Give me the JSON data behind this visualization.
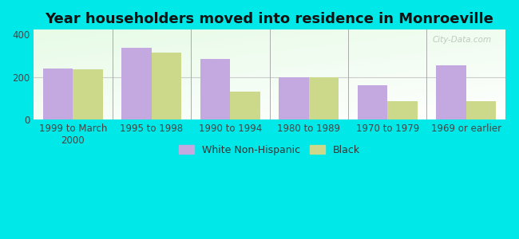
{
  "title": "Year householders moved into residence in Monroeville",
  "categories": [
    "1999 to March\n2000",
    "1995 to 1998",
    "1990 to 1994",
    "1980 to 1989",
    "1970 to 1979",
    "1969 or earlier"
  ],
  "white_values": [
    238,
    335,
    285,
    197,
    160,
    253
  ],
  "black_values": [
    235,
    315,
    132,
    197,
    85,
    88
  ],
  "white_color": "#c4a8e0",
  "black_color": "#ccd98a",
  "background_color": "#00e8e8",
  "ylim": [
    0,
    420
  ],
  "yticks": [
    0,
    200,
    400
  ],
  "bar_width": 0.38,
  "legend_white": "White Non-Hispanic",
  "legend_black": "Black",
  "watermark": "City-Data.com",
  "title_fontsize": 13,
  "tick_fontsize": 8.5,
  "legend_fontsize": 9,
  "separator_color": "#aaaaaa",
  "hline_color": "#cccccc"
}
